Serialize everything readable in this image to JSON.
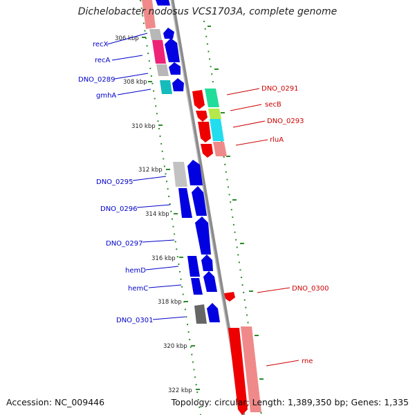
{
  "title": "Dichelobacter nodosus VCS1703A, complete genome",
  "footer": {
    "accession": "Accession: NC_009446",
    "summary": "Topology: circular; Length: 1,389,350 bp; Genes: 1,335"
  },
  "colors": {
    "backbone": "#8c8c8c",
    "tick": "#2a8a2a",
    "forward_label": "#0000c8",
    "reverse_label": "#cc0000"
  },
  "ruler": [
    {
      "label": "306 kbp"
    },
    {
      "label": "308 kbp"
    },
    {
      "label": "310 kbp"
    },
    {
      "label": "312 kbp"
    },
    {
      "label": "314 kbp"
    },
    {
      "label": "316 kbp"
    },
    {
      "label": "318 kbp"
    },
    {
      "label": "320 kbp"
    },
    {
      "label": "322 kbp"
    }
  ],
  "forward_genes": [
    {
      "label": "recX",
      "color": "#0000e0"
    },
    {
      "label": "recA",
      "color": "#0000e0"
    },
    {
      "label": "DNO_0289",
      "color": "#0000e0"
    },
    {
      "label": "gmhA",
      "color": "#0000e0"
    },
    {
      "label": "DNO_0295",
      "color": "#0000e0"
    },
    {
      "label": "DNO_0296",
      "color": "#0000e0"
    },
    {
      "label": "DNO_0297",
      "color": "#0000e0"
    },
    {
      "label": "hemD",
      "color": "#0000e0"
    },
    {
      "label": "hemC",
      "color": "#0000e0"
    },
    {
      "label": "DNO_0301",
      "color": "#0000e0"
    }
  ],
  "reverse_genes": [
    {
      "label": "DNO_0291",
      "color": "#ee0000"
    },
    {
      "label": "secB",
      "color": "#ee0000"
    },
    {
      "label": "DNO_0293",
      "color": "#ee0000"
    },
    {
      "label": "rluA",
      "color": "#ee0000"
    },
    {
      "label": "DNO_0300",
      "color": "#ee0000"
    },
    {
      "label": "rne",
      "color": "#ee0000"
    }
  ]
}
